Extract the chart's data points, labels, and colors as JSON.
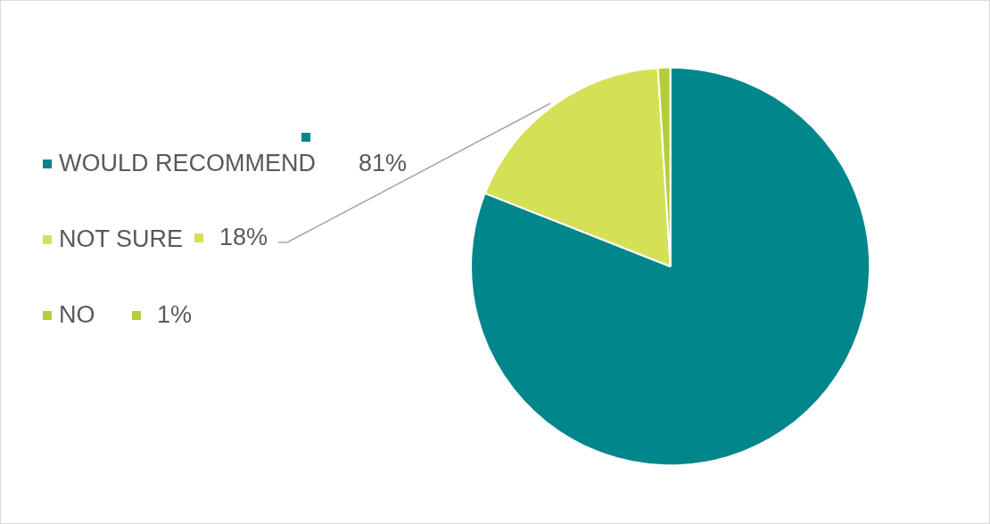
{
  "chart_data": {
    "type": "pie",
    "categories": [
      "WOULD RECOMMEND",
      "NOT SURE",
      "NO"
    ],
    "values": [
      81,
      18,
      1
    ],
    "colors": [
      "#00868b",
      "#d4e157",
      "#b2cf3a"
    ],
    "value_labels": [
      "81%",
      "18%",
      "1%"
    ],
    "legend": "left"
  }
}
